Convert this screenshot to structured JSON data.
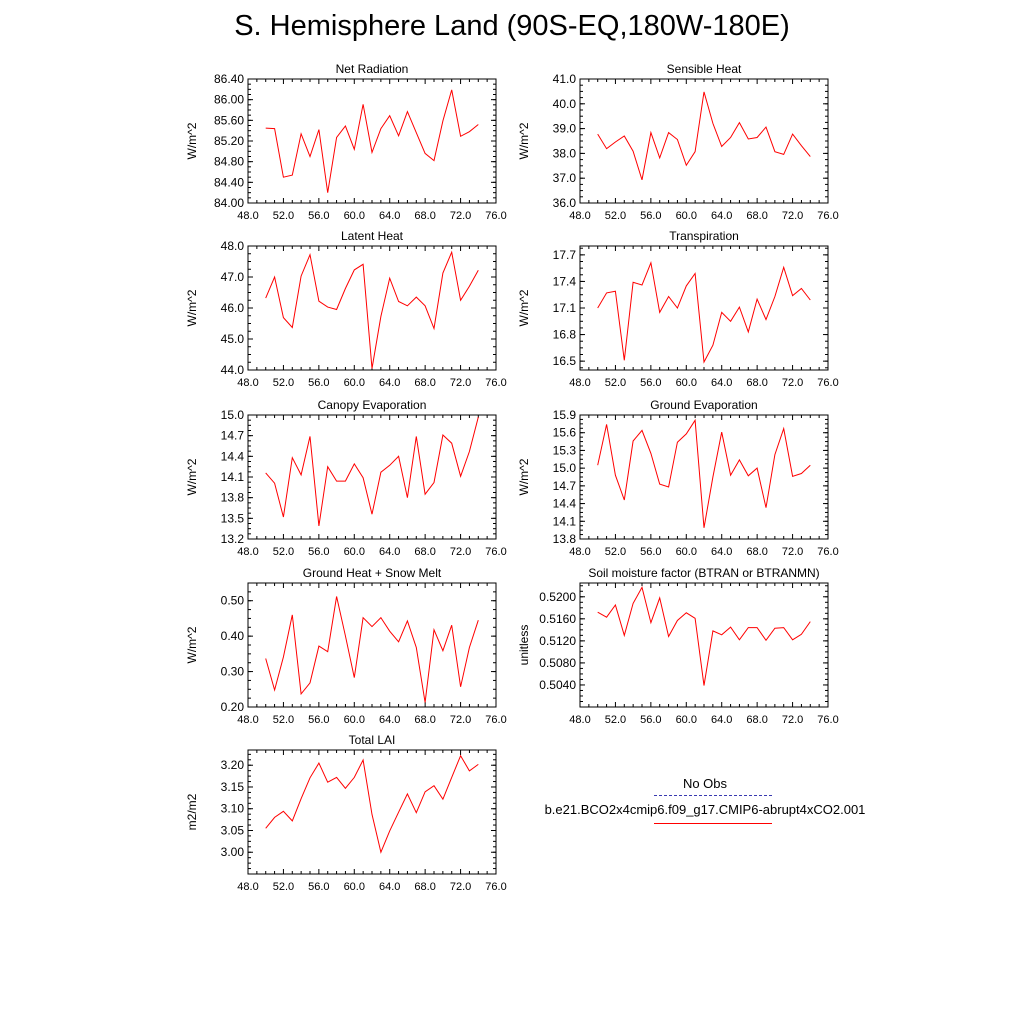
{
  "title": "S. Hemisphere Land (90S-EQ,180W-180E)",
  "colors": {
    "series": "#ff0000",
    "obs": "#3a3ab0",
    "axis": "#000000"
  },
  "legend": {
    "obs_label": "No Obs",
    "case_label": "b.e21.BCO2x4cmip6.f09_g17.CMIP6-abrupt4xCO2.001"
  },
  "chart_data": [
    {
      "type": "line",
      "title": "Net Radiation",
      "ylabel": "W/m^2",
      "xlim": [
        48,
        76
      ],
      "xticks": [
        "48.0",
        "52.0",
        "56.0",
        "60.0",
        "64.0",
        "68.0",
        "72.0",
        "76.0"
      ],
      "ylim": [
        84.0,
        86.4
      ],
      "yticks": [
        "84.00",
        "84.40",
        "84.80",
        "85.20",
        "85.60",
        "86.00",
        "86.40"
      ],
      "x": [
        50,
        51,
        52,
        53,
        54,
        55,
        56,
        57,
        58,
        59,
        60,
        61,
        62,
        63,
        64,
        65,
        66,
        67,
        68,
        69,
        70,
        71,
        72,
        73,
        74
      ],
      "series": [
        {
          "values": [
            85.45,
            85.44,
            84.5,
            84.54,
            85.34,
            84.9,
            85.42,
            84.2,
            85.27,
            85.49,
            85.04,
            85.91,
            84.98,
            85.44,
            85.69,
            85.3,
            85.77,
            85.36,
            84.96,
            84.82,
            85.59,
            86.19,
            85.29,
            85.38,
            85.52
          ]
        }
      ]
    },
    {
      "type": "line",
      "title": "Sensible Heat",
      "ylabel": "W/m^2",
      "xlim": [
        48,
        76
      ],
      "xticks": [
        "48.0",
        "52.0",
        "56.0",
        "60.0",
        "64.0",
        "68.0",
        "72.0",
        "76.0"
      ],
      "ylim": [
        36.0,
        41.0
      ],
      "yticks": [
        "36.0",
        "37.0",
        "38.0",
        "39.0",
        "40.0",
        "41.0"
      ],
      "x": [
        50,
        51,
        52,
        53,
        54,
        55,
        56,
        57,
        58,
        59,
        60,
        61,
        62,
        63,
        64,
        65,
        66,
        67,
        68,
        69,
        70,
        71,
        72,
        73,
        74
      ],
      "series": [
        {
          "values": [
            38.78,
            38.19,
            38.46,
            38.7,
            38.09,
            36.93,
            38.84,
            37.82,
            38.84,
            38.56,
            37.52,
            38.07,
            40.48,
            39.21,
            38.28,
            38.64,
            39.24,
            38.58,
            38.64,
            39.06,
            38.07,
            37.96,
            38.78,
            38.31,
            37.87
          ]
        }
      ]
    },
    {
      "type": "line",
      "title": "Latent Heat",
      "ylabel": "W/m^2",
      "xlim": [
        48,
        76
      ],
      "xticks": [
        "48.0",
        "52.0",
        "56.0",
        "60.0",
        "64.0",
        "68.0",
        "72.0",
        "76.0"
      ],
      "ylim": [
        44.0,
        48.0
      ],
      "yticks": [
        "44.0",
        "45.0",
        "46.0",
        "47.0",
        "48.0"
      ],
      "x": [
        50,
        51,
        52,
        53,
        54,
        55,
        56,
        57,
        58,
        59,
        60,
        61,
        62,
        63,
        64,
        65,
        66,
        67,
        68,
        69,
        70,
        71,
        72,
        73,
        74
      ],
      "series": [
        {
          "values": [
            46.32,
            47.0,
            45.69,
            45.37,
            47.03,
            47.72,
            46.22,
            46.03,
            45.95,
            46.63,
            47.23,
            47.41,
            44.05,
            45.73,
            46.96,
            46.21,
            46.07,
            46.35,
            46.07,
            45.34,
            47.13,
            47.8,
            46.25,
            46.7,
            47.22
          ]
        }
      ]
    },
    {
      "type": "line",
      "title": "Transpiration",
      "ylabel": "W/m^2",
      "xlim": [
        48,
        76
      ],
      "xticks": [
        "48.0",
        "52.0",
        "56.0",
        "60.0",
        "64.0",
        "68.0",
        "72.0",
        "76.0"
      ],
      "ylim": [
        16.4,
        17.8
      ],
      "yticks": [
        "16.5",
        "16.8",
        "17.1",
        "17.4",
        "17.7"
      ],
      "x": [
        50,
        51,
        52,
        53,
        54,
        55,
        56,
        57,
        58,
        59,
        60,
        61,
        62,
        63,
        64,
        65,
        66,
        67,
        68,
        69,
        70,
        71,
        72,
        73,
        74
      ],
      "series": [
        {
          "values": [
            17.1,
            17.27,
            17.29,
            16.51,
            17.39,
            17.36,
            17.61,
            17.05,
            17.23,
            17.1,
            17.35,
            17.49,
            16.49,
            16.68,
            17.05,
            16.95,
            17.11,
            16.83,
            17.2,
            16.97,
            17.23,
            17.56,
            17.24,
            17.32,
            17.19
          ]
        }
      ]
    },
    {
      "type": "line",
      "title": "Canopy Evaporation",
      "ylabel": "W/m^2",
      "xlim": [
        48,
        76
      ],
      "xticks": [
        "48.0",
        "52.0",
        "56.0",
        "60.0",
        "64.0",
        "68.0",
        "72.0",
        "76.0"
      ],
      "ylim": [
        13.2,
        15.0
      ],
      "yticks": [
        "13.2",
        "13.5",
        "13.8",
        "14.1",
        "14.4",
        "14.7",
        "15.0"
      ],
      "x": [
        50,
        51,
        52,
        53,
        54,
        55,
        56,
        57,
        58,
        59,
        60,
        61,
        62,
        63,
        64,
        65,
        66,
        67,
        68,
        69,
        70,
        71,
        72,
        73,
        74
      ],
      "series": [
        {
          "values": [
            14.16,
            14.01,
            13.52,
            14.38,
            14.13,
            14.69,
            13.39,
            14.25,
            14.04,
            14.04,
            14.29,
            14.09,
            13.56,
            14.17,
            14.27,
            14.4,
            13.8,
            14.69,
            13.85,
            14.02,
            14.71,
            14.59,
            14.11,
            14.47,
            14.97
          ]
        }
      ]
    },
    {
      "type": "line",
      "title": "Ground Evaporation",
      "ylabel": "W/m^2",
      "xlim": [
        48,
        76
      ],
      "xticks": [
        "48.0",
        "52.0",
        "56.0",
        "60.0",
        "64.0",
        "68.0",
        "72.0",
        "76.0"
      ],
      "ylim": [
        13.8,
        15.9
      ],
      "yticks": [
        "13.8",
        "14.1",
        "14.4",
        "14.7",
        "15.0",
        "15.3",
        "15.6",
        "15.9"
      ],
      "x": [
        50,
        51,
        52,
        53,
        54,
        55,
        56,
        57,
        58,
        59,
        60,
        61,
        62,
        63,
        64,
        65,
        66,
        67,
        68,
        69,
        70,
        71,
        72,
        73,
        74
      ],
      "series": [
        {
          "values": [
            15.05,
            15.74,
            14.88,
            14.46,
            15.46,
            15.64,
            15.25,
            14.73,
            14.68,
            15.44,
            15.58,
            15.81,
            13.99,
            14.85,
            15.61,
            14.88,
            15.14,
            14.87,
            15.0,
            14.33,
            15.23,
            15.67,
            14.86,
            14.91,
            15.05
          ]
        }
      ]
    },
    {
      "type": "line",
      "title": "Ground Heat + Snow Melt",
      "ylabel": "W/m^2",
      "xlim": [
        48,
        76
      ],
      "xticks": [
        "48.0",
        "52.0",
        "56.0",
        "60.0",
        "64.0",
        "68.0",
        "72.0",
        "76.0"
      ],
      "ylim": [
        0.2,
        0.55
      ],
      "yticks": [
        "0.20",
        "0.30",
        "0.40",
        "0.50"
      ],
      "x": [
        50,
        51,
        52,
        53,
        54,
        55,
        56,
        57,
        58,
        59,
        60,
        61,
        62,
        63,
        64,
        65,
        66,
        67,
        68,
        69,
        70,
        71,
        72,
        73,
        74
      ],
      "series": [
        {
          "values": [
            0.337,
            0.248,
            0.341,
            0.46,
            0.237,
            0.268,
            0.372,
            0.356,
            0.512,
            0.401,
            0.283,
            0.452,
            0.427,
            0.452,
            0.414,
            0.384,
            0.443,
            0.368,
            0.213,
            0.418,
            0.359,
            0.431,
            0.257,
            0.368,
            0.445
          ]
        }
      ]
    },
    {
      "type": "line",
      "title": "Soil moisture factor (BTRAN or BTRANMN)",
      "ylabel": "unitless",
      "xlim": [
        48,
        76
      ],
      "xticks": [
        "48.0",
        "52.0",
        "56.0",
        "60.0",
        "64.0",
        "68.0",
        "72.0",
        "76.0"
      ],
      "ylim": [
        0.5,
        0.5225
      ],
      "yticks": [
        "0.5040",
        "0.5080",
        "0.5120",
        "0.5160",
        "0.5200"
      ],
      "x": [
        50,
        51,
        52,
        53,
        54,
        55,
        56,
        57,
        58,
        59,
        60,
        61,
        62,
        63,
        64,
        65,
        66,
        67,
        68,
        69,
        70,
        71,
        72,
        73,
        74
      ],
      "series": [
        {
          "values": [
            0.5172,
            0.5163,
            0.5185,
            0.513,
            0.5188,
            0.5217,
            0.5153,
            0.5198,
            0.5128,
            0.5157,
            0.5171,
            0.5161,
            0.5039,
            0.5138,
            0.5131,
            0.5145,
            0.5122,
            0.5144,
            0.5144,
            0.5121,
            0.5143,
            0.5144,
            0.5122,
            0.5132,
            0.5155
          ]
        }
      ]
    },
    {
      "type": "line",
      "title": "Total LAI",
      "ylabel": "m2/m2",
      "xlim": [
        48,
        76
      ],
      "xticks": [
        "48.0",
        "52.0",
        "56.0",
        "60.0",
        "64.0",
        "68.0",
        "72.0",
        "76.0"
      ],
      "ylim": [
        2.95,
        3.235
      ],
      "yticks": [
        "3.00",
        "3.05",
        "3.10",
        "3.15",
        "3.20"
      ],
      "x": [
        50,
        51,
        52,
        53,
        54,
        55,
        56,
        57,
        58,
        59,
        60,
        61,
        62,
        63,
        64,
        65,
        66,
        67,
        68,
        69,
        70,
        71,
        72,
        73,
        74
      ],
      "series": [
        {
          "values": [
            3.055,
            3.08,
            3.094,
            3.072,
            3.123,
            3.171,
            3.205,
            3.161,
            3.172,
            3.147,
            3.172,
            3.212,
            3.087,
            3.0,
            3.049,
            3.092,
            3.134,
            3.091,
            3.139,
            3.153,
            3.122,
            3.172,
            3.222,
            3.187,
            3.202
          ]
        }
      ]
    }
  ]
}
